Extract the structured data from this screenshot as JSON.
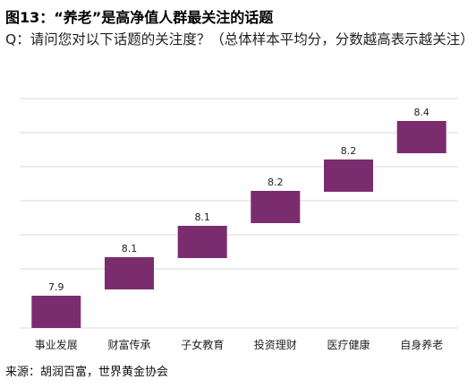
{
  "title": "图13：“养老”是高净值人群最关注的话题",
  "subtitle": "Q：请问您对以下话题的关注度？（总体样本平均分，分数越高表示越关注）",
  "source": "来源：胡润百富，世界黄金协会",
  "colors": {
    "bar": "#7b2c6e",
    "grid": "#d9d9d9"
  },
  "chart_data": {
    "type": "bar",
    "style": "waterfall",
    "categories": [
      "事业发展",
      "财富传承",
      "子女教育",
      "投资理财",
      "医疗健康",
      "自身养老"
    ],
    "values": [
      7.9,
      8.1,
      8.1,
      8.2,
      8.2,
      8.4
    ],
    "value_labels": [
      "7.9",
      "8.1",
      "8.1",
      "8.2",
      "8.2",
      "8.4"
    ],
    "grid": true,
    "legend": "none"
  }
}
